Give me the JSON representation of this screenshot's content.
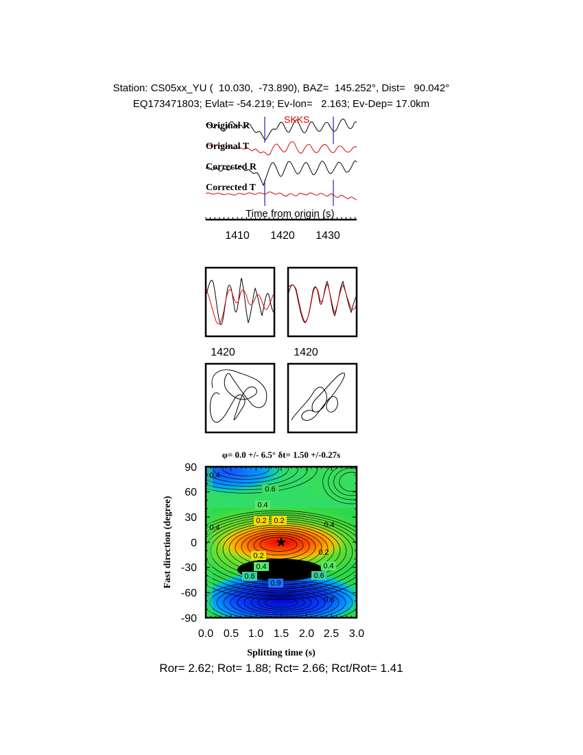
{
  "header": {
    "line1": "Station: CS05xx_YU (  10.030,  -73.890), BAZ=  145.252°, Dist=   90.042°",
    "line2": "EQ173471803; Evlat= -54.219; Ev-lon=   2.163; Ev-Dep= 17.0km"
  },
  "traces": {
    "phase_label": "SKKS",
    "labels": [
      "Original R",
      "Original T",
      "Corrected R",
      "Corrected T"
    ],
    "xlabel": "Time from origin (s)",
    "ticks": [
      "1410",
      "1420",
      "1430"
    ]
  },
  "small_panels": {
    "tick_left": "1420",
    "tick_right": "1420"
  },
  "grid_search": {
    "title": "φ= 0.0 +/- 6.5° δt= 1.50 +/-0.27s",
    "xlabel": "Splitting time (s)",
    "ylabel": "Fast direction (degree)",
    "x_ticks": [
      "0.0",
      "0.5",
      "1.0",
      "1.5",
      "2.0",
      "2.5",
      "3.0"
    ],
    "y_ticks": [
      "90",
      "60",
      "30",
      "0",
      "-30",
      "-60",
      "-90"
    ],
    "contour_labels": [
      "0.6",
      "0.4",
      "0.2",
      "0.2",
      "0.4",
      "0.4",
      "0.2",
      "0.2",
      "0.4",
      "0.4",
      "0.6",
      "0.9",
      "0.6",
      "0.8",
      "0.4"
    ]
  },
  "footer": "Ror= 2.62; Rot= 1.88; Rct= 2.66; Rct/Rot= 1.41",
  "chart_data": [
    {
      "type": "line",
      "title": "",
      "xlabel": "Time from origin (s)",
      "ylabel": "",
      "xlim": [
        1402,
        1436
      ],
      "series": [
        {
          "name": "Original R",
          "color": "#000000"
        },
        {
          "name": "Original T",
          "color": "#dd0000"
        },
        {
          "name": "Corrected R",
          "color": "#000000"
        },
        {
          "name": "Corrected T",
          "color": "#dd0000"
        }
      ],
      "annotations": [
        {
          "text": "SKKS",
          "x": 1421
        }
      ],
      "window_markers_x": [
        1416.3,
        1431.5
      ]
    },
    {
      "type": "heatmap",
      "title": "φ= 0.0 +/- 6.5° δt= 1.50 +/-0.27s",
      "xlabel": "Splitting time (s)",
      "ylabel": "Fast direction (degree)",
      "xlim": [
        0,
        3
      ],
      "ylim": [
        -90,
        90
      ],
      "best_fit": {
        "dt": 1.5,
        "phi": 0.0
      },
      "contour_levels": [
        0.2,
        0.4,
        0.6,
        0.8,
        0.9
      ]
    }
  ],
  "colors": {
    "trace_black": "#000000",
    "trace_red": "#dd0000",
    "window_marker": "#1f1fb4",
    "phase_label": "#dd0000"
  }
}
